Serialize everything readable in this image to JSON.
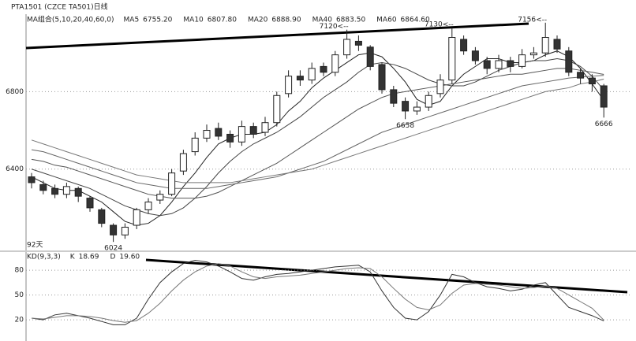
{
  "header": {
    "title": "PTA1501 (CZCE TA501)日线"
  },
  "chart_data": [
    {
      "type": "candlestick",
      "legend_title": "MA组合(5,10,20,40,60,0)",
      "period_label": "92天",
      "ylim": [
        5980,
        7200
      ],
      "yticks": [
        6400,
        6800
      ],
      "grid": true,
      "up_color": "#ffffff",
      "down_color": "#333333",
      "edge_color": "#222222",
      "open": [
        6360,
        6320,
        6300,
        6270,
        6300,
        6250,
        6190,
        6110,
        6060,
        6110,
        6190,
        6240,
        6270,
        6390,
        6490,
        6560,
        6610,
        6580,
        6540,
        6620,
        6590,
        6640,
        6790,
        6880,
        6860,
        6930,
        6900,
        6990,
        7060,
        7030,
        6940,
        6810,
        6750,
        6700,
        6720,
        6790,
        6860,
        7070,
        7010,
        6960,
        6920,
        6960,
        6930,
        6990,
        7000,
        7070,
        7010,
        6900,
        6870,
        6830
      ],
      "high": [
        6380,
        6340,
        6320,
        6330,
        6310,
        6260,
        6200,
        6120,
        6120,
        6200,
        6250,
        6290,
        6400,
        6500,
        6590,
        6630,
        6640,
        6600,
        6650,
        6640,
        6670,
        6800,
        6910,
        6910,
        6950,
        6950,
        7010,
        7120,
        7090,
        7040,
        6950,
        6830,
        6770,
        6750,
        6800,
        6890,
        7130,
        7090,
        7030,
        6980,
        6990,
        6980,
        7020,
        7030,
        7156,
        7090,
        7030,
        6920,
        6890,
        6840
      ],
      "low": [
        6300,
        6270,
        6250,
        6250,
        6230,
        6180,
        6100,
        6024,
        6040,
        6090,
        6170,
        6220,
        6260,
        6370,
        6470,
        6540,
        6550,
        6510,
        6520,
        6560,
        6570,
        6620,
        6770,
        6830,
        6840,
        6880,
        6880,
        6970,
        7010,
        6910,
        6790,
        6720,
        6658,
        6680,
        6700,
        6770,
        6840,
        6990,
        6940,
        6890,
        6900,
        6900,
        6920,
        6970,
        6980,
        7000,
        6880,
        6840,
        6800,
        6666
      ],
      "close": [
        6330,
        6290,
        6270,
        6310,
        6260,
        6200,
        6120,
        6060,
        6100,
        6190,
        6230,
        6270,
        6380,
        6480,
        6560,
        6600,
        6570,
        6540,
        6620,
        6580,
        6640,
        6780,
        6880,
        6860,
        6920,
        6900,
        6990,
        7070,
        7040,
        6930,
        6810,
        6740,
        6700,
        6720,
        6780,
        6860,
        7080,
        7010,
        6960,
        6920,
        6960,
        6930,
        6990,
        7000,
        7080,
        7020,
        6900,
        6870,
        6840,
        6720
      ],
      "series": [
        {
          "name": "MA5",
          "color": "#222222",
          "last": {
            "value": 6755.2,
            "label": "6755.20"
          },
          "values": [
            6360,
            6330,
            6300,
            6290,
            6290,
            6260,
            6230,
            6180,
            6130,
            6110,
            6120,
            6160,
            6230,
            6310,
            6380,
            6460,
            6530,
            6560,
            6580,
            6580,
            6590,
            6630,
            6700,
            6750,
            6820,
            6870,
            6910,
            6950,
            6990,
            7000,
            6980,
            6920,
            6850,
            6760,
            6730,
            6750,
            6830,
            6890,
            6930,
            6970,
            6970,
            6950,
            6950,
            6960,
            6990,
            7010,
            6980,
            6920,
            6840,
            6755
          ]
        },
        {
          "name": "MA10",
          "color": "#444444",
          "last": {
            "value": 6807.8,
            "label": "6807.80"
          },
          "values": [
            6400,
            6380,
            6360,
            6340,
            6320,
            6300,
            6270,
            6240,
            6210,
            6190,
            6170,
            6160,
            6170,
            6200,
            6250,
            6310,
            6380,
            6440,
            6490,
            6530,
            6560,
            6590,
            6630,
            6670,
            6720,
            6770,
            6810,
            6850,
            6900,
            6940,
            6950,
            6940,
            6920,
            6890,
            6860,
            6840,
            6830,
            6830,
            6850,
            6880,
            6910,
            6930,
            6950,
            6960,
            6960,
            6970,
            6960,
            6930,
            6880,
            6808
          ]
        },
        {
          "name": "MA20",
          "color": "#555555",
          "last": {
            "value": 6888.9,
            "label": "6888.90"
          },
          "values": [
            6450,
            6440,
            6420,
            6410,
            6390,
            6370,
            6350,
            6330,
            6310,
            6290,
            6270,
            6260,
            6250,
            6250,
            6250,
            6260,
            6280,
            6310,
            6340,
            6370,
            6400,
            6430,
            6470,
            6510,
            6550,
            6590,
            6630,
            6670,
            6710,
            6740,
            6770,
            6790,
            6800,
            6810,
            6820,
            6830,
            6840,
            6850,
            6860,
            6870,
            6880,
            6890,
            6890,
            6900,
            6910,
            6920,
            6920,
            6910,
            6900,
            6889
          ]
        },
        {
          "name": "MA40",
          "color": "#666666",
          "last": {
            "value": 6883.5,
            "label": "6883.50"
          },
          "values": [
            6500,
            6490,
            6470,
            6450,
            6430,
            6410,
            6390,
            6370,
            6350,
            6330,
            6320,
            6310,
            6300,
            6300,
            6300,
            6300,
            6310,
            6320,
            6330,
            6340,
            6350,
            6360,
            6380,
            6400,
            6420,
            6440,
            6470,
            6500,
            6530,
            6560,
            6590,
            6610,
            6630,
            6650,
            6670,
            6690,
            6710,
            6730,
            6750,
            6770,
            6790,
            6810,
            6830,
            6840,
            6850,
            6860,
            6870,
            6875,
            6880,
            6884
          ]
        },
        {
          "name": "MA60",
          "color": "#777777",
          "last": {
            "value": 6864.6,
            "label": "6864.60"
          },
          "values": [
            6550,
            6530,
            6510,
            6490,
            6470,
            6450,
            6430,
            6410,
            6390,
            6370,
            6360,
            6350,
            6340,
            6330,
            6330,
            6330,
            6330,
            6330,
            6340,
            6350,
            6360,
            6370,
            6380,
            6390,
            6400,
            6420,
            6440,
            6460,
            6480,
            6500,
            6520,
            6540,
            6560,
            6580,
            6600,
            6620,
            6640,
            6660,
            6680,
            6700,
            6720,
            6740,
            6760,
            6780,
            6800,
            6810,
            6820,
            6840,
            6850,
            6865
          ]
        }
      ],
      "annotations": [
        {
          "text": "7120<--",
          "value": 7120
        },
        {
          "text": "7130<--",
          "value": 7130
        },
        {
          "text": "7156<--",
          "value": 7156
        },
        {
          "text": "6024",
          "value": 6024
        },
        {
          "text": "6658",
          "value": 6658
        },
        {
          "text": "6666",
          "value": 6666
        }
      ]
    },
    {
      "type": "line",
      "title": "KD(9,3,3)",
      "ylim": [
        2,
        102
      ],
      "yticks": [
        20,
        50,
        80
      ],
      "grid": true,
      "series": [
        {
          "name": "K",
          "color": "#333333",
          "last": 18.69,
          "values": [
            22,
            20,
            26,
            28,
            25,
            22,
            18,
            14,
            14,
            22,
            45,
            65,
            78,
            88,
            92,
            90,
            85,
            78,
            70,
            68,
            72,
            75,
            76,
            78,
            80,
            82,
            84,
            85,
            86,
            78,
            55,
            35,
            22,
            20,
            30,
            50,
            75,
            72,
            65,
            60,
            58,
            55,
            57,
            62,
            65,
            50,
            35,
            30,
            25,
            18.69
          ]
        },
        {
          "name": "D",
          "color": "#777777",
          "last": {
            "value": 19.6,
            "label": "19.60"
          },
          "values": [
            22,
            21,
            23,
            25,
            25,
            24,
            22,
            19,
            17,
            19,
            28,
            40,
            55,
            68,
            78,
            85,
            88,
            85,
            78,
            72,
            70,
            72,
            73,
            74,
            76,
            78,
            80,
            82,
            83,
            82,
            72,
            58,
            45,
            35,
            32,
            38,
            52,
            62,
            64,
            63,
            62,
            60,
            58,
            59,
            61,
            58,
            50,
            42,
            34,
            19.6
          ]
        }
      ]
    }
  ]
}
